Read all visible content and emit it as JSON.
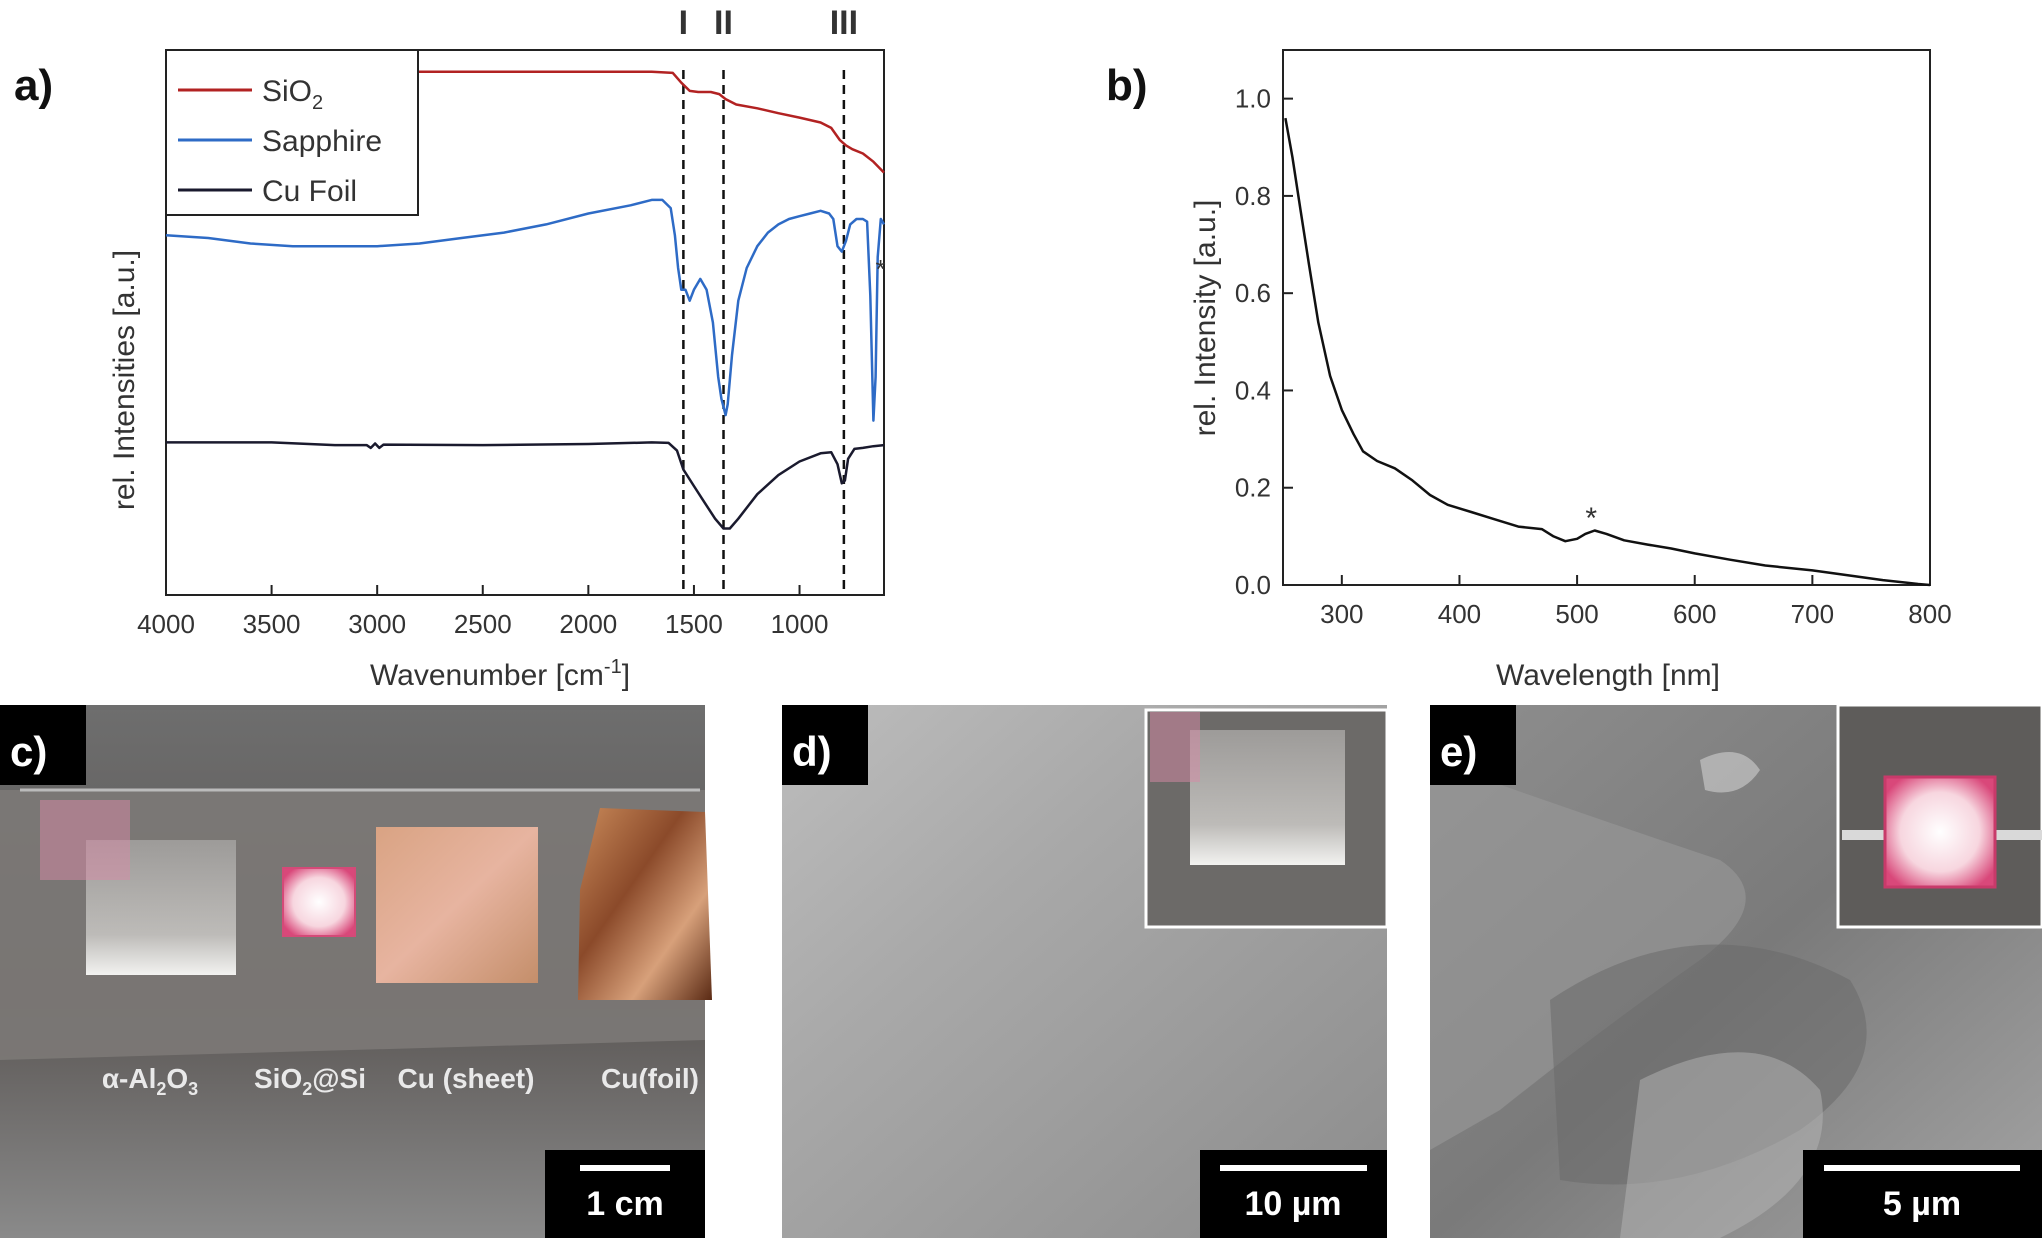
{
  "panels": {
    "a": "a)",
    "b": "b)",
    "c": "c)",
    "d": "d)",
    "e": "e)"
  },
  "chart_data": [
    {
      "type": "line",
      "panel": "a",
      "xlabel_main": "Wavenumber [cm",
      "xlabel_sup": "-1",
      "xlabel_end": "]",
      "ylabel": "rel. Intensities [a.u.]",
      "xlim": [
        4000,
        600
      ],
      "x_reversed": true,
      "xticks": [
        4000,
        3500,
        3000,
        2500,
        2000,
        1500,
        1000
      ],
      "y_ticks_shown": false,
      "legend": {
        "placement": "top-left",
        "entries": [
          {
            "main": "SiO",
            "sub": "2"
          },
          {
            "main": "Sapphire",
            "sub": ""
          },
          {
            "main": "Cu Foil",
            "sub": ""
          }
        ]
      },
      "markers": [
        {
          "label": "I",
          "x": 1550
        },
        {
          "label": "II",
          "x": 1360
        },
        {
          "label": "III",
          "x": 790
        }
      ],
      "asterisk": {
        "text": "*",
        "x": 640
      },
      "series": [
        {
          "name": "SiO2",
          "color": "#b22222",
          "points": [
            [
              4000,
              0.96
            ],
            [
              3500,
              0.96
            ],
            [
              3000,
              0.96
            ],
            [
              2500,
              0.96
            ],
            [
              2000,
              0.96
            ],
            [
              1700,
              0.96
            ],
            [
              1600,
              0.958
            ],
            [
              1560,
              0.94
            ],
            [
              1520,
              0.925
            ],
            [
              1480,
              0.923
            ],
            [
              1420,
              0.923
            ],
            [
              1380,
              0.919
            ],
            [
              1350,
              0.91
            ],
            [
              1300,
              0.9
            ],
            [
              1200,
              0.893
            ],
            [
              1100,
              0.884
            ],
            [
              1000,
              0.876
            ],
            [
              900,
              0.867
            ],
            [
              850,
              0.857
            ],
            [
              810,
              0.835
            ],
            [
              780,
              0.825
            ],
            [
              750,
              0.818
            ],
            [
              700,
              0.81
            ],
            [
              650,
              0.795
            ],
            [
              600,
              0.775
            ]
          ]
        },
        {
          "name": "Sapphire",
          "color": "#2e6bc6",
          "points": [
            [
              4000,
              0.66
            ],
            [
              3800,
              0.655
            ],
            [
              3600,
              0.645
            ],
            [
              3400,
              0.64
            ],
            [
              3200,
              0.64
            ],
            [
              3000,
              0.64
            ],
            [
              2800,
              0.645
            ],
            [
              2600,
              0.655
            ],
            [
              2400,
              0.665
            ],
            [
              2200,
              0.68
            ],
            [
              2000,
              0.7
            ],
            [
              1800,
              0.715
            ],
            [
              1700,
              0.725
            ],
            [
              1650,
              0.725
            ],
            [
              1610,
              0.71
            ],
            [
              1590,
              0.66
            ],
            [
              1575,
              0.6
            ],
            [
              1560,
              0.56
            ],
            [
              1540,
              0.56
            ],
            [
              1520,
              0.54
            ],
            [
              1500,
              0.56
            ],
            [
              1470,
              0.58
            ],
            [
              1440,
              0.56
            ],
            [
              1410,
              0.5
            ],
            [
              1385,
              0.4
            ],
            [
              1370,
              0.36
            ],
            [
              1350,
              0.33
            ],
            [
              1340,
              0.35
            ],
            [
              1320,
              0.44
            ],
            [
              1290,
              0.54
            ],
            [
              1250,
              0.6
            ],
            [
              1200,
              0.64
            ],
            [
              1150,
              0.665
            ],
            [
              1100,
              0.68
            ],
            [
              1050,
              0.69
            ],
            [
              1000,
              0.695
            ],
            [
              950,
              0.7
            ],
            [
              900,
              0.705
            ],
            [
              860,
              0.7
            ],
            [
              840,
              0.69
            ],
            [
              820,
              0.64
            ],
            [
              800,
              0.63
            ],
            [
              780,
              0.65
            ],
            [
              760,
              0.68
            ],
            [
              730,
              0.69
            ],
            [
              700,
              0.69
            ],
            [
              680,
              0.685
            ],
            [
              665,
              0.55
            ],
            [
              650,
              0.32
            ],
            [
              640,
              0.4
            ],
            [
              630,
              0.62
            ],
            [
              615,
              0.69
            ],
            [
              600,
              0.68
            ]
          ]
        },
        {
          "name": "Cu Foil",
          "color": "#1a1a2e",
          "points": [
            [
              4000,
              0.28
            ],
            [
              3500,
              0.28
            ],
            [
              3200,
              0.275
            ],
            [
              3050,
              0.275
            ],
            [
              3030,
              0.27
            ],
            [
              3010,
              0.278
            ],
            [
              2990,
              0.27
            ],
            [
              2970,
              0.276
            ],
            [
              2500,
              0.275
            ],
            [
              2000,
              0.277
            ],
            [
              1700,
              0.28
            ],
            [
              1620,
              0.279
            ],
            [
              1580,
              0.265
            ],
            [
              1550,
              0.23
            ],
            [
              1500,
              0.2
            ],
            [
              1450,
              0.17
            ],
            [
              1400,
              0.14
            ],
            [
              1360,
              0.122
            ],
            [
              1330,
              0.122
            ],
            [
              1290,
              0.14
            ],
            [
              1240,
              0.165
            ],
            [
              1200,
              0.185
            ],
            [
              1100,
              0.22
            ],
            [
              1000,
              0.245
            ],
            [
              900,
              0.26
            ],
            [
              850,
              0.262
            ],
            [
              820,
              0.24
            ],
            [
              800,
              0.205
            ],
            [
              785,
              0.21
            ],
            [
              770,
              0.25
            ],
            [
              740,
              0.268
            ],
            [
              700,
              0.27
            ],
            [
              650,
              0.273
            ],
            [
              600,
              0.275
            ]
          ]
        }
      ]
    },
    {
      "type": "line",
      "panel": "b",
      "xlabel": "Wavelength [nm]",
      "ylabel": "rel. Intensity [a.u.]",
      "xlim": [
        250,
        800
      ],
      "ylim": [
        0.0,
        1.1
      ],
      "xticks": [
        300,
        400,
        500,
        600,
        700,
        800
      ],
      "yticks": [
        "0.0",
        "0.2",
        "0.4",
        "0.6",
        "0.8",
        "1.0"
      ],
      "asterisk": {
        "text": "*",
        "x": 512,
        "y": 0.15
      },
      "series": [
        {
          "name": "",
          "color": "#111111",
          "points": [
            [
              252,
              0.96
            ],
            [
              258,
              0.88
            ],
            [
              265,
              0.77
            ],
            [
              272,
              0.66
            ],
            [
              280,
              0.54
            ],
            [
              290,
              0.43
            ],
            [
              300,
              0.36
            ],
            [
              310,
              0.31
            ],
            [
              318,
              0.275
            ],
            [
              330,
              0.255
            ],
            [
              345,
              0.24
            ],
            [
              360,
              0.215
            ],
            [
              375,
              0.185
            ],
            [
              390,
              0.165
            ],
            [
              410,
              0.15
            ],
            [
              430,
              0.135
            ],
            [
              450,
              0.12
            ],
            [
              470,
              0.115
            ],
            [
              480,
              0.1
            ],
            [
              490,
              0.09
            ],
            [
              500,
              0.095
            ],
            [
              507,
              0.105
            ],
            [
              515,
              0.112
            ],
            [
              525,
              0.105
            ],
            [
              540,
              0.092
            ],
            [
              560,
              0.083
            ],
            [
              580,
              0.075
            ],
            [
              600,
              0.065
            ],
            [
              630,
              0.052
            ],
            [
              660,
              0.04
            ],
            [
              700,
              0.03
            ],
            [
              730,
              0.02
            ],
            [
              760,
              0.01
            ],
            [
              790,
              0.002
            ],
            [
              800,
              0.0
            ]
          ]
        }
      ]
    }
  ],
  "photos": {
    "c": {
      "labels": [
        {
          "main": "α-Al",
          "sub1": "2",
          "mid": "O",
          "sub2": "3"
        },
        {
          "main": "SiO",
          "sub1": "2",
          "mid": "@Si",
          "sub2": ""
        },
        {
          "main": "Cu (sheet)",
          "sub1": "",
          "mid": "",
          "sub2": ""
        },
        {
          "main": "Cu(foil)",
          "sub1": "",
          "mid": "",
          "sub2": ""
        }
      ],
      "scalebar": "1 cm"
    },
    "d": {
      "scalebar": "10 µm"
    },
    "e": {
      "scalebar": "5 µm"
    }
  }
}
